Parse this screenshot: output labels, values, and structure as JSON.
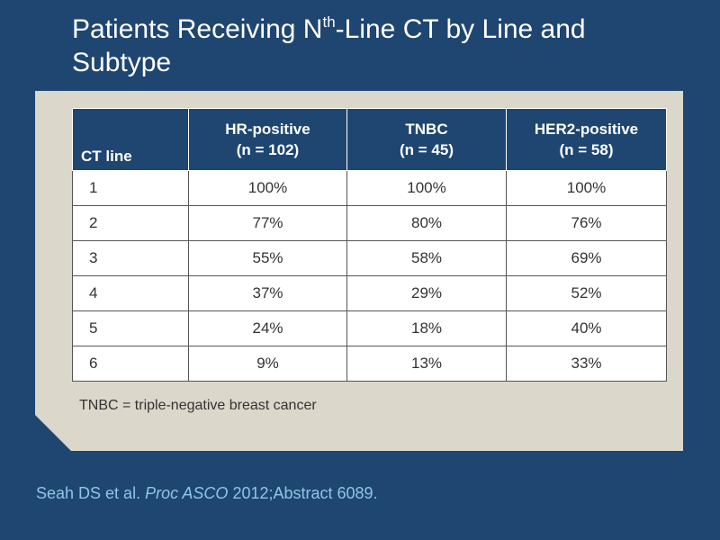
{
  "slide": {
    "title_line1_before": "Patients Receiving N",
    "title_superscript": "th",
    "title_line1_after": "-Line CT by Line and",
    "title_line2": "Subtype"
  },
  "table": {
    "headers": {
      "line": "CT line",
      "hr_name": "HR-positive",
      "hr_n": "(n = 102)",
      "tnbc_name": "TNBC",
      "tnbc_n": "(n = 45)",
      "her2_name": "HER2-positive",
      "her2_n": "(n = 58)"
    },
    "rows": [
      {
        "line": "1",
        "hr": "100%",
        "tnbc": "100%",
        "her2": "100%"
      },
      {
        "line": "2",
        "hr": "77%",
        "tnbc": "80%",
        "her2": "76%"
      },
      {
        "line": "3",
        "hr": "55%",
        "tnbc": "58%",
        "her2": "69%"
      },
      {
        "line": "4",
        "hr": "37%",
        "tnbc": "29%",
        "her2": "52%"
      },
      {
        "line": "5",
        "hr": "24%",
        "tnbc": "18%",
        "her2": "40%"
      },
      {
        "line": "6",
        "hr": "9%",
        "tnbc": "13%",
        "her2": "33%"
      }
    ]
  },
  "footnote": "TNBC = triple-negative breast cancer",
  "citation": {
    "authors": "Seah DS et al. ",
    "journal": "Proc ASCO",
    "details": " 2012;Abstract 6089."
  },
  "colors": {
    "background": "#1e4670",
    "panel": "#dbd7ca",
    "header_fill": "#1e4670",
    "citation_text": "#8fc6e6"
  }
}
